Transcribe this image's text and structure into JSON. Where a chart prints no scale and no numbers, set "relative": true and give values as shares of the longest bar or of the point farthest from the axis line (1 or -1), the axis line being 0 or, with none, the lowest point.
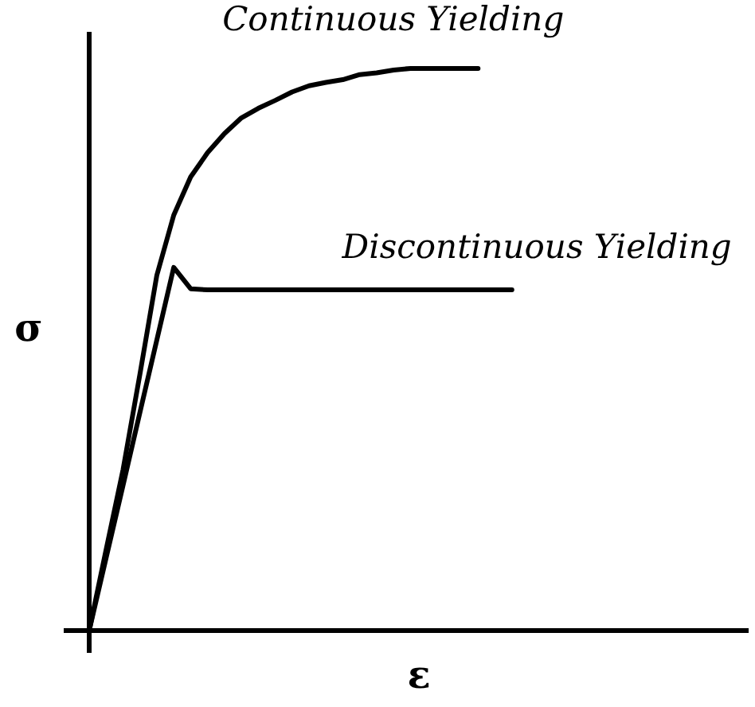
{
  "chart_data": {
    "type": "line",
    "relative": true,
    "xlabel": "ε",
    "ylabel": "σ",
    "legend": false,
    "marker": "none",
    "categories": [
      null,
      null,
      null,
      null,
      null,
      null,
      null,
      null,
      null,
      null,
      null,
      null,
      null,
      null,
      null,
      null,
      null,
      null,
      null,
      null,
      null,
      null,
      null,
      null,
      null,
      null,
      null,
      null,
      null,
      null,
      null,
      null,
      null,
      null,
      null,
      null,
      null,
      null,
      null,
      null
    ],
    "series": [
      {
        "name": "Continuous Yielding",
        "color": "#000000",
        "values": [
          0,
          0.144,
          0.286,
          0.456,
          0.632,
          0.739,
          0.807,
          0.85,
          0.884,
          0.912,
          0.929,
          0.943,
          0.958,
          0.969,
          0.975,
          0.98,
          0.989,
          0.992,
          0.997,
          1,
          1,
          1,
          1,
          1,
          null,
          null,
          null,
          null,
          null,
          null,
          null,
          null,
          null,
          null,
          null,
          null,
          null,
          null,
          null,
          null
        ]
      },
      {
        "name": "Discontinuous Yielding",
        "color": "#000000",
        "values": [
          0,
          0.129,
          0.258,
          0.388,
          0.517,
          0.646,
          0.608,
          0.606,
          0.606,
          0.606,
          0.606,
          0.606,
          0.606,
          0.606,
          0.606,
          0.606,
          0.606,
          0.606,
          0.606,
          0.606,
          0.606,
          0.606,
          0.606,
          0.606,
          0.606,
          0.606,
          null,
          null,
          null,
          null,
          null,
          null,
          null,
          null,
          null,
          null,
          null,
          null,
          null,
          null
        ]
      }
    ]
  }
}
